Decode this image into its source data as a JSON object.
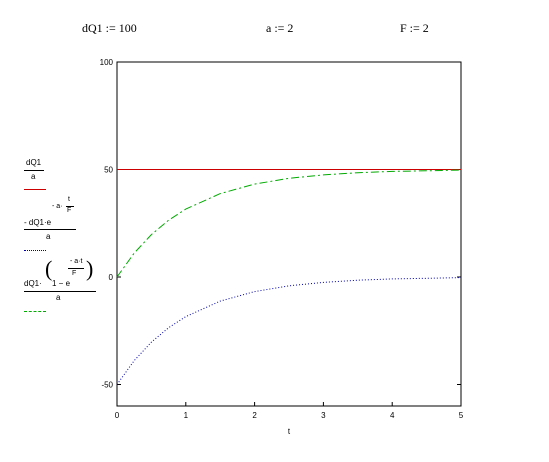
{
  "definitions": [
    {
      "text": "dQ1 := 100"
    },
    {
      "text": "a := 2"
    },
    {
      "text": "F := 2"
    }
  ],
  "legend": {
    "expr1": {
      "num": "dQ1",
      "den": "a"
    },
    "expr2": {
      "num": "- dQ1·e",
      "exp": "- a·",
      "exp_num": "t",
      "exp_den": "F",
      "den": "a"
    },
    "expr3": {
      "num_a": "dQ1·",
      "paren_open": "(",
      "one_minus": "1 − e",
      "exp_num": "- a·t",
      "exp_den": "F",
      "paren_close": ")",
      "den": "a"
    }
  },
  "colors": {
    "series1": "#cc0000",
    "series2": "#0000aa",
    "series3": "#00aa00",
    "axis": "#000000"
  },
  "chart_data": {
    "type": "line",
    "xlabel": "t",
    "ylabel": "",
    "xlim": [
      0,
      5
    ],
    "ylim": [
      -60,
      100
    ],
    "x_ticks": [
      0,
      1,
      2,
      3,
      4,
      5
    ],
    "y_ticks": [
      100,
      50,
      0,
      -50
    ],
    "grid": false,
    "parameters": {
      "dQ1": 100,
      "a": 2,
      "F": 2
    },
    "series": [
      {
        "style": "solid",
        "color": "#cc0000",
        "x": [
          0,
          1,
          2,
          3,
          4,
          5
        ],
        "y": [
          50,
          50,
          50,
          50,
          50,
          50
        ]
      },
      {
        "style": "dotted",
        "color": "#0000aa",
        "x": [
          0,
          0.25,
          0.5,
          0.75,
          1,
          1.5,
          2,
          2.5,
          3,
          3.5,
          4,
          4.5,
          5
        ],
        "y": [
          -50,
          -38.9,
          -30.3,
          -23.6,
          -18.4,
          -11.2,
          -6.8,
          -4.1,
          -2.5,
          -1.5,
          -0.9,
          -0.6,
          -0.3
        ]
      },
      {
        "style": "dash-dot",
        "color": "#00aa00",
        "x": [
          0,
          0.25,
          0.5,
          0.75,
          1,
          1.5,
          2,
          2.5,
          3,
          3.5,
          4,
          4.5,
          5
        ],
        "y": [
          0,
          11.1,
          19.7,
          26.4,
          31.6,
          38.8,
          43.2,
          45.9,
          47.5,
          48.5,
          49.1,
          49.4,
          49.7
        ]
      }
    ]
  }
}
